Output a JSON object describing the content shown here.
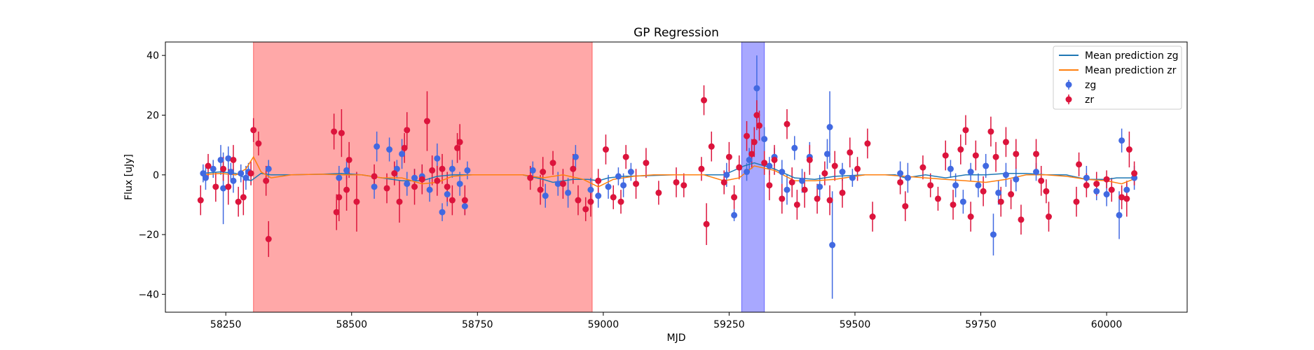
{
  "chart_data": {
    "type": "scatter",
    "title": "GP Regression",
    "xlabel": "MJD",
    "ylabel": "Flux [uJy]",
    "xlim": [
      58130,
      60160
    ],
    "ylim": [
      -46,
      44.5
    ],
    "xticks": [
      58250,
      58500,
      58750,
      59000,
      59250,
      59500,
      59750,
      60000
    ],
    "yticks": [
      -40,
      -20,
      0,
      20,
      40
    ],
    "grid": false,
    "legend_position": "top-right",
    "shaded_regions": [
      {
        "x0": 58305,
        "x1": 58978,
        "color": "#ff0000",
        "alpha": 0.34
      },
      {
        "x0": 59275,
        "x1": 59320,
        "color": "#0000ff",
        "alpha": 0.34
      }
    ],
    "lines": [
      {
        "name": "Mean prediction zg",
        "color": "#1f77b4",
        "x": [
          58200,
          58240,
          58270,
          58300,
          58320,
          58340,
          58380,
          58440,
          58480,
          58520,
          58560,
          58600,
          58640,
          58670,
          58700,
          58740,
          58780,
          58840,
          58880,
          58900,
          58940,
          58970,
          58990,
          59010,
          59040,
          59080,
          59140,
          59200,
          59240,
          59280,
          59300,
          59340,
          59380,
          59420,
          59460,
          59520,
          59580,
          59600,
          59640,
          59680,
          59720,
          59760,
          59800,
          59840,
          59880,
          59920,
          59960,
          60000,
          60020,
          60060
        ],
        "y": [
          0.5,
          1.0,
          0.5,
          -2.0,
          0.5,
          0.0,
          0.0,
          0.2,
          0.5,
          0.0,
          -1.0,
          -2.0,
          -2.0,
          -0.5,
          0.0,
          0.0,
          0.0,
          0.0,
          -1.5,
          -2.5,
          -1.5,
          -1.5,
          -2.0,
          -1.0,
          -0.5,
          -0.3,
          0.0,
          0.0,
          0.0,
          3.0,
          4.0,
          2.0,
          -1.0,
          -1.5,
          -0.5,
          0.0,
          0.0,
          -1.0,
          0.0,
          -1.0,
          0.0,
          0.0,
          0.5,
          0.5,
          0.0,
          0.0,
          -1.5,
          -1.5,
          -1.0,
          -1.0
        ]
      },
      {
        "name": "Mean prediction zr",
        "color": "#ff7f0e",
        "x": [
          58200,
          58240,
          58270,
          58290,
          58305,
          58320,
          58340,
          58380,
          58440,
          58480,
          58520,
          58560,
          58600,
          58640,
          58670,
          58700,
          58740,
          58780,
          58840,
          58880,
          58920,
          58960,
          58990,
          59020,
          59060,
          59100,
          59160,
          59200,
          59240,
          59270,
          59300,
          59340,
          59380,
          59420,
          59460,
          59520,
          59560,
          59600,
          59640,
          59680,
          59720,
          59760,
          59800,
          59840,
          59880,
          59920,
          59960,
          60000,
          60030,
          60060
        ],
        "y": [
          0.0,
          0.5,
          0.0,
          2.0,
          6.0,
          1.0,
          -1.0,
          0.0,
          0.2,
          0.0,
          0.0,
          -1.0,
          -1.0,
          -3.0,
          -2.5,
          -0.5,
          0.0,
          0.0,
          0.0,
          -1.0,
          0.0,
          -1.5,
          -4.0,
          -1.5,
          -0.5,
          0.0,
          0.0,
          0.0,
          -2.0,
          -1.0,
          3.0,
          1.5,
          -2.0,
          -2.0,
          -1.5,
          0.0,
          0.0,
          -0.5,
          -1.0,
          -1.5,
          -2.0,
          -2.5,
          -1.5,
          0.0,
          0.0,
          -0.5,
          -1.5,
          -2.0,
          -3.0,
          -1.0
        ]
      }
    ],
    "series": [
      {
        "name": "zg",
        "color": "#4169e1",
        "points": [
          [
            58205,
            0.5,
            3
          ],
          [
            58210,
            -1.0,
            4
          ],
          [
            58225,
            2.0,
            3
          ],
          [
            58240,
            5.0,
            5
          ],
          [
            58245,
            -4.5,
            12
          ],
          [
            58255,
            5.5,
            4
          ],
          [
            58260,
            1.0,
            3
          ],
          [
            58265,
            -2.0,
            4
          ],
          [
            58280,
            0.5,
            3
          ],
          [
            58290,
            -1.0,
            4
          ],
          [
            58295,
            1.0,
            3
          ],
          [
            58335,
            2.0,
            3
          ],
          [
            58475,
            -1.0,
            4
          ],
          [
            58490,
            1.5,
            3
          ],
          [
            58545,
            -4.0,
            4
          ],
          [
            58550,
            9.5,
            5
          ],
          [
            58575,
            8.5,
            4
          ],
          [
            58590,
            2.0,
            3
          ],
          [
            58600,
            7.0,
            5
          ],
          [
            58610,
            -3.0,
            4
          ],
          [
            58625,
            -1.0,
            3
          ],
          [
            58640,
            -0.5,
            4
          ],
          [
            58655,
            -5.0,
            4
          ],
          [
            58670,
            5.5,
            5
          ],
          [
            58680,
            -12.5,
            3
          ],
          [
            58690,
            -6.5,
            4
          ],
          [
            58700,
            2.0,
            3
          ],
          [
            58715,
            -3.0,
            4
          ],
          [
            58725,
            -10.5,
            3
          ],
          [
            58730,
            1.5,
            3
          ],
          [
            58860,
            1.5,
            3
          ],
          [
            58885,
            -7.0,
            4
          ],
          [
            58910,
            -3.0,
            4
          ],
          [
            58930,
            -6.0,
            5
          ],
          [
            58945,
            6.0,
            4
          ],
          [
            58975,
            -5.0,
            4
          ],
          [
            58990,
            -7.0,
            4
          ],
          [
            59010,
            -4.0,
            4
          ],
          [
            59030,
            -0.5,
            3
          ],
          [
            59040,
            -3.5,
            4
          ],
          [
            59055,
            1.0,
            3
          ],
          [
            59245,
            0.0,
            4
          ],
          [
            59260,
            -13.5,
            2
          ],
          [
            59285,
            1.0,
            3
          ],
          [
            59290,
            5.0,
            4
          ],
          [
            59305,
            29.0,
            11
          ],
          [
            59320,
            12.0,
            4
          ],
          [
            59330,
            3.0,
            3
          ],
          [
            59340,
            6.0,
            3
          ],
          [
            59355,
            1.0,
            4
          ],
          [
            59365,
            -5.0,
            5
          ],
          [
            59380,
            9.0,
            4
          ],
          [
            59395,
            -2.0,
            4
          ],
          [
            59410,
            6.0,
            5
          ],
          [
            59430,
            -4.0,
            4
          ],
          [
            59445,
            7.0,
            5
          ],
          [
            59450,
            16.0,
            12
          ],
          [
            59455,
            -23.5,
            18
          ],
          [
            59475,
            1.0,
            3
          ],
          [
            59495,
            -1.0,
            3
          ],
          [
            59590,
            0.5,
            4
          ],
          [
            59605,
            -1.0,
            5
          ],
          [
            59690,
            2.0,
            3
          ],
          [
            59700,
            -3.5,
            4
          ],
          [
            59715,
            -9.0,
            4
          ],
          [
            59730,
            1.0,
            3
          ],
          [
            59745,
            -3.5,
            4
          ],
          [
            59760,
            3.0,
            4
          ],
          [
            59775,
            -20.0,
            7
          ],
          [
            59785,
            -6.0,
            4
          ],
          [
            59800,
            0.0,
            4
          ],
          [
            59820,
            -1.5,
            4
          ],
          [
            59860,
            1.0,
            3
          ],
          [
            59960,
            -1.0,
            4
          ],
          [
            59980,
            -5.5,
            3
          ],
          [
            60000,
            -6.5,
            4
          ],
          [
            60025,
            -13.5,
            8
          ],
          [
            60030,
            11.5,
            4
          ],
          [
            60040,
            -5.0,
            3
          ],
          [
            60055,
            -1.0,
            4
          ]
        ]
      },
      {
        "name": "zr",
        "color": "#dc143c",
        "points": [
          [
            58200,
            -8.5,
            5
          ],
          [
            58215,
            3.0,
            4
          ],
          [
            58230,
            -4.0,
            5
          ],
          [
            58245,
            2.0,
            4
          ],
          [
            58255,
            -4.0,
            6
          ],
          [
            58265,
            5.0,
            5
          ],
          [
            58275,
            -9.0,
            5
          ],
          [
            58285,
            -7.5,
            6
          ],
          [
            58300,
            0.5,
            4
          ],
          [
            58305,
            15.0,
            4
          ],
          [
            58315,
            10.5,
            4
          ],
          [
            58330,
            -2.0,
            5
          ],
          [
            58335,
            -21.5,
            6
          ],
          [
            58465,
            14.5,
            6
          ],
          [
            58470,
            -12.5,
            6
          ],
          [
            58475,
            -7.5,
            8
          ],
          [
            58480,
            14.0,
            8
          ],
          [
            58490,
            -5.0,
            7
          ],
          [
            58495,
            5.0,
            6
          ],
          [
            58510,
            -9.0,
            10
          ],
          [
            58545,
            -0.5,
            4
          ],
          [
            58570,
            -4.5,
            5
          ],
          [
            58585,
            0.5,
            4
          ],
          [
            58595,
            -9.0,
            7
          ],
          [
            58605,
            9.0,
            5
          ],
          [
            58610,
            15.0,
            6
          ],
          [
            58625,
            -4.0,
            6
          ],
          [
            58640,
            -1.5,
            5
          ],
          [
            58650,
            18.0,
            10
          ],
          [
            58660,
            1.5,
            5
          ],
          [
            58670,
            -2.0,
            5
          ],
          [
            58680,
            2.0,
            5
          ],
          [
            58690,
            -4.0,
            5
          ],
          [
            58700,
            -8.5,
            5
          ],
          [
            58710,
            9.0,
            5
          ],
          [
            58715,
            11.0,
            6
          ],
          [
            58725,
            -8.5,
            5
          ],
          [
            58855,
            -1.0,
            4
          ],
          [
            58875,
            -5.0,
            5
          ],
          [
            58880,
            1.0,
            5
          ],
          [
            58900,
            4.0,
            4
          ],
          [
            58920,
            -3.0,
            5
          ],
          [
            58940,
            2.0,
            5
          ],
          [
            58950,
            -8.5,
            5
          ],
          [
            58965,
            -11.5,
            4
          ],
          [
            58975,
            -9.0,
            5
          ],
          [
            58990,
            -2.0,
            4
          ],
          [
            59005,
            8.5,
            5
          ],
          [
            59020,
            -7.5,
            4
          ],
          [
            59035,
            -9.0,
            4
          ],
          [
            59045,
            6.0,
            4
          ],
          [
            59065,
            -3.0,
            5
          ],
          [
            59085,
            4.0,
            5
          ],
          [
            59110,
            -6.0,
            4
          ],
          [
            59145,
            -2.5,
            5
          ],
          [
            59160,
            -3.5,
            4
          ],
          [
            59195,
            2.0,
            4
          ],
          [
            59200,
            25.0,
            5
          ],
          [
            59205,
            -16.5,
            7
          ],
          [
            59215,
            9.5,
            5
          ],
          [
            59240,
            -2.5,
            4
          ],
          [
            59250,
            6.0,
            5
          ],
          [
            59260,
            -7.5,
            4
          ],
          [
            59270,
            2.5,
            4
          ],
          [
            59285,
            13.0,
            5
          ],
          [
            59295,
            7.0,
            5
          ],
          [
            59300,
            11.0,
            5
          ],
          [
            59305,
            20.0,
            5
          ],
          [
            59310,
            16.5,
            5
          ],
          [
            59320,
            4.0,
            4
          ],
          [
            59330,
            -3.5,
            5
          ],
          [
            59340,
            5.0,
            5
          ],
          [
            59355,
            -8.0,
            5
          ],
          [
            59365,
            17.0,
            5
          ],
          [
            59375,
            -2.5,
            5
          ],
          [
            59385,
            -10.0,
            5
          ],
          [
            59400,
            -5.0,
            6
          ],
          [
            59410,
            5.0,
            5
          ],
          [
            59425,
            -8.0,
            5
          ],
          [
            59440,
            0.5,
            4
          ],
          [
            59450,
            -8.5,
            5
          ],
          [
            59460,
            3.0,
            5
          ],
          [
            59475,
            -6.0,
            5
          ],
          [
            59490,
            7.5,
            5
          ],
          [
            59505,
            2.0,
            4
          ],
          [
            59525,
            10.5,
            5
          ],
          [
            59535,
            -14.0,
            5
          ],
          [
            59590,
            -2.5,
            4
          ],
          [
            59600,
            -10.5,
            5
          ],
          [
            59635,
            2.5,
            4
          ],
          [
            59650,
            -3.5,
            4
          ],
          [
            59665,
            -8.0,
            4
          ],
          [
            59680,
            6.5,
            5
          ],
          [
            59695,
            -10.0,
            5
          ],
          [
            59710,
            8.5,
            5
          ],
          [
            59720,
            15.0,
            5
          ],
          [
            59730,
            -14.0,
            5
          ],
          [
            59740,
            6.5,
            5
          ],
          [
            59755,
            -5.5,
            5
          ],
          [
            59770,
            14.5,
            5
          ],
          [
            59780,
            6.0,
            5
          ],
          [
            59790,
            -9.0,
            5
          ],
          [
            59800,
            11.0,
            5
          ],
          [
            59810,
            -6.5,
            5
          ],
          [
            59820,
            7.0,
            5
          ],
          [
            59830,
            -15.0,
            5
          ],
          [
            59860,
            7.0,
            5
          ],
          [
            59870,
            -2.0,
            5
          ],
          [
            59880,
            -5.5,
            4
          ],
          [
            59885,
            -14.0,
            5
          ],
          [
            59940,
            -9.0,
            5
          ],
          [
            59945,
            3.5,
            4
          ],
          [
            59960,
            -3.5,
            4
          ],
          [
            59980,
            -3.0,
            4
          ],
          [
            60000,
            -1.5,
            3
          ],
          [
            60010,
            -5.0,
            4
          ],
          [
            60030,
            -7.5,
            4
          ],
          [
            60040,
            -8.0,
            6
          ],
          [
            60045,
            8.5,
            6
          ],
          [
            60055,
            0.5,
            4
          ]
        ]
      }
    ],
    "legend": [
      "Mean prediction zg",
      "Mean prediction zr",
      "zg",
      "zr"
    ]
  }
}
